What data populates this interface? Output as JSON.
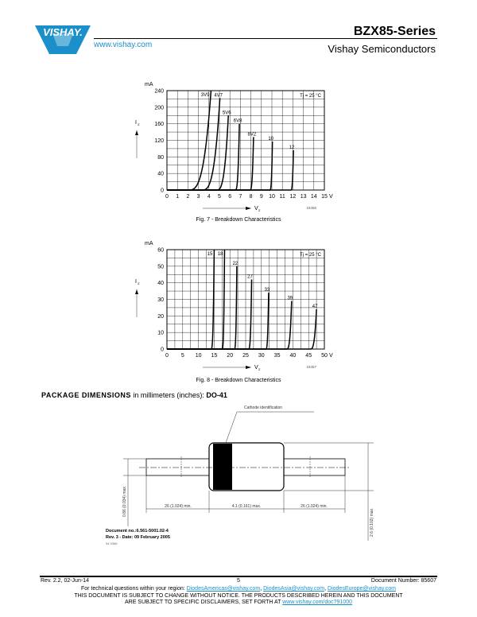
{
  "header": {
    "logo_text": "VISHAY.",
    "website": "www.vishay.com",
    "series_title": "BZX85-Series",
    "company": "Vishay Semiconductors"
  },
  "chart_data": [
    {
      "type": "line",
      "title": "Fig. 7 - Breakdown Characteristics",
      "xlabel": "VZ",
      "ylabel": "IZ",
      "y_unit": "mA",
      "x_unit": "V",
      "xlim": [
        0,
        15
      ],
      "ylim": [
        0,
        240
      ],
      "x_ticks": [
        "0",
        "1",
        "2",
        "3",
        "4",
        "5",
        "6",
        "7",
        "8",
        "9",
        "10",
        "11",
        "12",
        "13",
        "14",
        "15"
      ],
      "y_ticks": [
        "0",
        "40",
        "80",
        "120",
        "160",
        "200",
        "240"
      ],
      "grid": true,
      "annotation": "Tj = 25 °C",
      "figure_code": "18456",
      "series": [
        {
          "name": "3V9",
          "knee_start_v": 2.0,
          "end": [
            4.2,
            240
          ]
        },
        {
          "name": "4V7",
          "knee_start_v": 3.3,
          "end": [
            5.05,
            222
          ]
        },
        {
          "name": "5V6",
          "knee_start_v": 4.7,
          "end": [
            5.85,
            180
          ]
        },
        {
          "name": "6V8",
          "knee_start_v": 6.5,
          "end": [
            6.9,
            160
          ]
        },
        {
          "name": "8V2",
          "knee_start_v": 7.9,
          "end": [
            8.25,
            128
          ]
        },
        {
          "name": "10",
          "knee_start_v": 9.8,
          "end": [
            10.05,
            117
          ]
        },
        {
          "name": "12",
          "knee_start_v": 11.8,
          "end": [
            12.05,
            96
          ]
        }
      ]
    },
    {
      "type": "line",
      "title": "Fig. 8 - Breakdown Characteristics",
      "xlabel": "VZ",
      "ylabel": "IZ",
      "y_unit": "mA",
      "x_unit": "V",
      "xlim": [
        0,
        50
      ],
      "ylim": [
        0,
        60
      ],
      "x_ticks": [
        "0",
        "5",
        "10",
        "15",
        "20",
        "25",
        "30",
        "35",
        "40",
        "45",
        "50"
      ],
      "y_ticks": [
        "0",
        "10",
        "20",
        "30",
        "40",
        "50",
        "60"
      ],
      "grid": true,
      "annotation": "Tj = 25 °C",
      "figure_code": "18457",
      "series": [
        {
          "name": "15",
          "knee_start_v": 14.0,
          "end": [
            15.0,
            60
          ]
        },
        {
          "name": "18",
          "knee_start_v": 17.5,
          "end": [
            18.3,
            60
          ]
        },
        {
          "name": "22",
          "knee_start_v": 21.4,
          "end": [
            22.2,
            50
          ]
        },
        {
          "name": "27",
          "knee_start_v": 25.9,
          "end": [
            26.9,
            42
          ]
        },
        {
          "name": "33",
          "knee_start_v": 31.4,
          "end": [
            32.3,
            34
          ]
        },
        {
          "name": "39",
          "knee_start_v": 38.0,
          "end": [
            39.6,
            29
          ]
        },
        {
          "name": "47",
          "knee_start_v": 45.5,
          "end": [
            47.5,
            24
          ]
        }
      ]
    }
  ],
  "package": {
    "title_bold": "PACKAGE DIMENSIONS",
    "title_normal": " in millimeters (inches): ",
    "package_name": "DO-41",
    "cathode_label": "Cathode identification",
    "dim_lead_left": "26 (1.024) min.",
    "dim_body": "4.1 (0.161) max.",
    "dim_lead_right": "26 (1.024) min.",
    "dim_lead_dia": "0.86 (0.034) max.",
    "dim_body_dia": "2.6 (0.102) max.",
    "doc_no": "Document no.:6.561-5001.02-4",
    "rev": "Rev. 3 - Date: 09 February 2005",
    "code": "94 9368"
  },
  "footer": {
    "revision": "Rev. 2.2, 02-Jun-14",
    "page": "5",
    "doc_number": "Document Number: 85607",
    "tech_prefix": "For technical questions within your region: ",
    "email_americas": "DiodesAmericas@vishay.com",
    "email_asia": "DiodesAsia@vishay.com",
    "email_europe": "DiodesEurope@vishay.com",
    "sep": ", ",
    "disclaimer_1": "THIS DOCUMENT IS SUBJECT TO CHANGE WITHOUT NOTICE. THE PRODUCTS DESCRIBED HEREIN AND THIS DOCUMENT",
    "disclaimer_2": "ARE SUBJECT TO SPECIFIC DISCLAIMERS, SET FORTH AT ",
    "disclaimer_link": "www.vishay.com/doc?91000"
  }
}
